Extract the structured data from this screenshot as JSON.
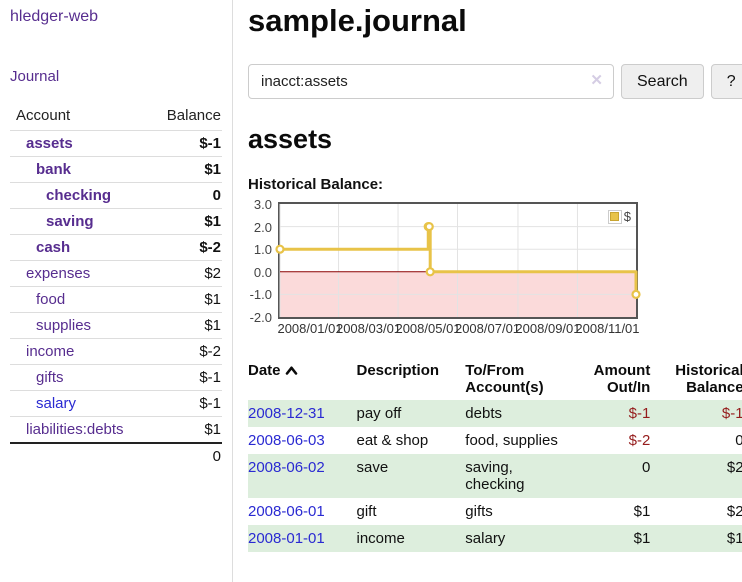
{
  "app": {
    "title": "hledger-web",
    "nav_journal": "Journal"
  },
  "colors": {
    "link_purple": "#572d8f",
    "link_blue": "#2a2ad2",
    "negative": "#951c1c",
    "negative_muted": "#bd7e7e",
    "row_shade_green": "#ddeedd",
    "chart_line": "#e8c348",
    "chart_negative_region": "#fbdada",
    "chart_zero_line": "#8b0000"
  },
  "sidebar": {
    "columns": [
      "Account",
      "Balance"
    ],
    "accounts": [
      {
        "name": "assets",
        "depth": 1,
        "bold": true,
        "balance": "$-1",
        "balance_style": "neg",
        "link_style": "visited"
      },
      {
        "name": "bank",
        "depth": 2,
        "bold": true,
        "balance": "$1",
        "balance_style": "pos",
        "link_style": "visited"
      },
      {
        "name": "checking",
        "depth": 3,
        "bold": true,
        "balance": "0",
        "balance_style": "pos",
        "link_style": "visited"
      },
      {
        "name": "saving",
        "depth": 3,
        "bold": true,
        "balance": "$1",
        "balance_style": "pos",
        "link_style": "visited"
      },
      {
        "name": "cash",
        "depth": 2,
        "bold": true,
        "balance": "$-2",
        "balance_style": "neg",
        "link_style": "visited"
      },
      {
        "name": "expenses",
        "depth": 1,
        "bold": false,
        "balance": "$2",
        "balance_style": "pos",
        "link_style": "visited"
      },
      {
        "name": "food",
        "depth": 2,
        "bold": false,
        "balance": "$1",
        "balance_style": "pos",
        "link_style": "visited"
      },
      {
        "name": "supplies",
        "depth": 2,
        "bold": false,
        "balance": "$1",
        "balance_style": "pos",
        "link_style": "visited"
      },
      {
        "name": "income",
        "depth": 1,
        "bold": false,
        "balance": "$-2",
        "balance_style": "neg-muted",
        "link_style": "visited"
      },
      {
        "name": "gifts",
        "depth": 2,
        "bold": false,
        "balance": "$-1",
        "balance_style": "neg-muted",
        "link_style": "visited"
      },
      {
        "name": "salary",
        "depth": 2,
        "bold": false,
        "balance": "$-1",
        "balance_style": "neg-muted",
        "link_style": "unvisited"
      },
      {
        "name": "liabilities:debts",
        "depth": 1,
        "bold": false,
        "balance": "$1",
        "balance_style": "pos",
        "link_style": "visited"
      }
    ],
    "total": "0"
  },
  "header": {
    "title": "sample.journal"
  },
  "search": {
    "value": "inacct:assets",
    "clear_icon": "✕",
    "button": "Search",
    "help_button": "?"
  },
  "account_page": {
    "title": "assets",
    "chart_label": "Historical Balance:"
  },
  "chart_data": {
    "type": "line",
    "title": "Historical Balance:",
    "step": true,
    "series": [
      {
        "name": "$",
        "color": "#e8c348",
        "points": [
          [
            "2008-01-01",
            1
          ],
          [
            "2008-06-01",
            2
          ],
          [
            "2008-06-02",
            2
          ],
          [
            "2008-06-03",
            0
          ],
          [
            "2008-12-31",
            -1
          ]
        ]
      }
    ],
    "x_range": [
      "2008-01-01",
      "2008-12-31"
    ],
    "x_ticks": [
      "2008/01/01",
      "2008/03/01",
      "2008/05/01",
      "2008/07/01",
      "2008/09/01",
      "2008/11/01"
    ],
    "y_ticks": [
      3.0,
      2.0,
      1.0,
      0.0,
      -1.0,
      -2.0
    ],
    "ylim": [
      -2,
      3
    ],
    "grid": true,
    "legend": {
      "label": "$",
      "position": "top-right"
    },
    "negative_region_color": "#fbdada",
    "zero_line_color": "#8b0000"
  },
  "register": {
    "columns": [
      "Date",
      "Description",
      "To/From Account(s)",
      "Amount Out/In",
      "Historical Balance"
    ],
    "sort": {
      "column": "Date",
      "direction": "ascending"
    },
    "rows": [
      {
        "date": "2008-12-31",
        "description": "pay off",
        "accounts": "debts",
        "amount": "$-1",
        "amount_negative": true,
        "balance": "$-1",
        "balance_negative": true,
        "shaded": true
      },
      {
        "date": "2008-06-03",
        "description": "eat & shop",
        "accounts": "food, supplies",
        "amount": "$-2",
        "amount_negative": true,
        "balance": "0",
        "balance_negative": false,
        "shaded": false
      },
      {
        "date": "2008-06-02",
        "description": "save",
        "accounts": "saving,\nchecking",
        "amount": "0",
        "amount_negative": false,
        "balance": "$2",
        "balance_negative": false,
        "shaded": true
      },
      {
        "date": "2008-06-01",
        "description": "gift",
        "accounts": "gifts",
        "amount": "$1",
        "amount_negative": false,
        "balance": "$2",
        "balance_negative": false,
        "shaded": false
      },
      {
        "date": "2008-01-01",
        "description": "income",
        "accounts": "salary",
        "amount": "$1",
        "amount_negative": false,
        "balance": "$1",
        "balance_negative": false,
        "shaded": true
      }
    ]
  }
}
